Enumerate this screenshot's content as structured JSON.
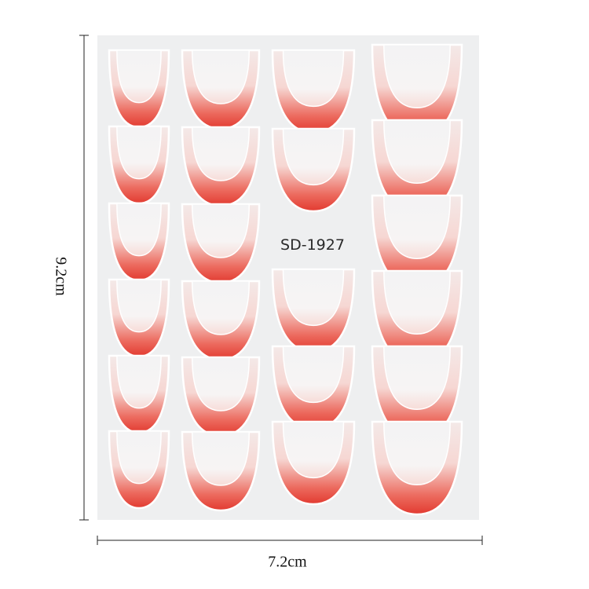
{
  "sheet": {
    "code": "SD-1927"
  },
  "dimensions": {
    "height": "9.2cm",
    "width": "7.2cm"
  }
}
